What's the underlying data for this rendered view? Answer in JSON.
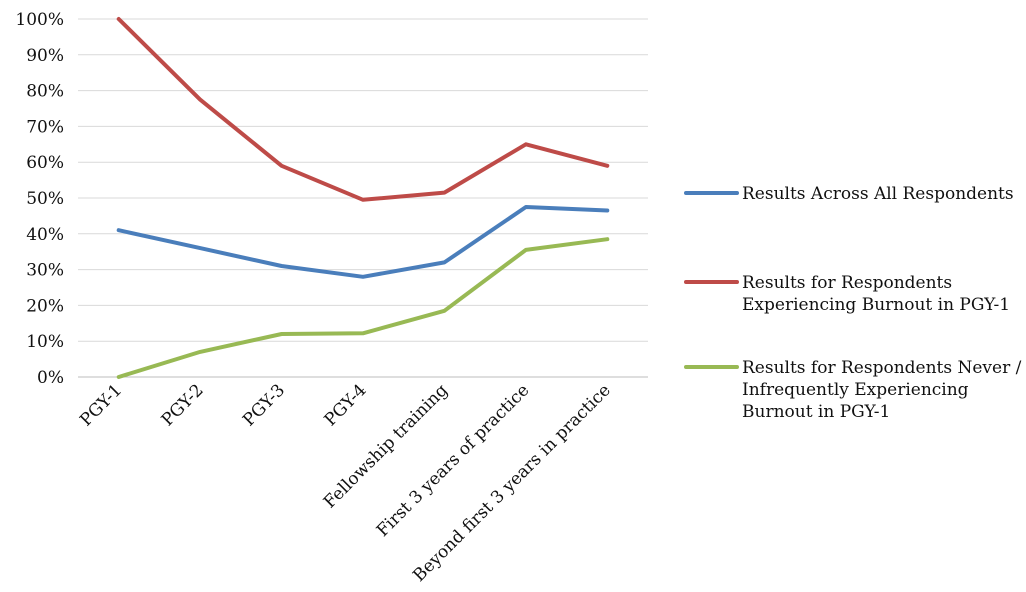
{
  "chart_data": {
    "type": "line",
    "categories": [
      "PGY-1",
      "PGY-2",
      "PGY-3",
      "PGY-4",
      "Fellowship training",
      "First 3 years of practice",
      "Beyond first 3 years in practice"
    ],
    "ylim": [
      0,
      1
    ],
    "yticks": [
      "0%",
      "10%",
      "20%",
      "30%",
      "40%",
      "50%",
      "60%",
      "70%",
      "80%",
      "90%",
      "100%"
    ],
    "grid": true,
    "legend_position": "right",
    "series": [
      {
        "name_lines": [
          "Results Across All Respondents"
        ],
        "color": "#4a7ebb",
        "values": [
          0.41,
          0.36,
          0.31,
          0.28,
          0.32,
          0.475,
          0.465
        ]
      },
      {
        "name_lines": [
          "Results for Respondents",
          "Experiencing Burnout in PGY-1"
        ],
        "color": "#be4b48",
        "values": [
          1.0,
          0.775,
          0.59,
          0.495,
          0.515,
          0.65,
          0.59
        ]
      },
      {
        "name_lines": [
          "Results for Respondents Never /",
          "Infrequently Experiencing",
          "Burnout in PGY-1"
        ],
        "color": "#98b954",
        "values": [
          0.0,
          0.07,
          0.12,
          0.122,
          0.185,
          0.355,
          0.385
        ]
      }
    ]
  }
}
